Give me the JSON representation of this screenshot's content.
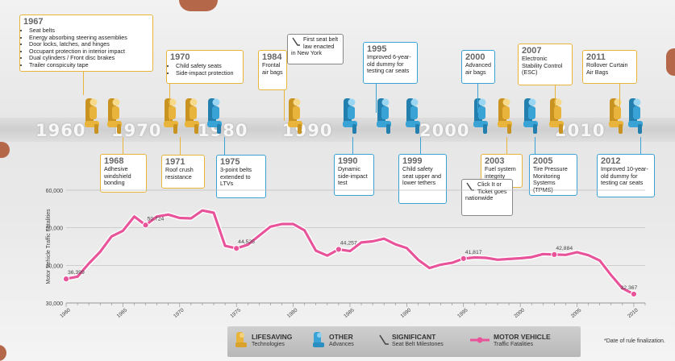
{
  "timeline": {
    "decades": [
      "1960",
      "1970",
      "1980",
      "1990",
      "2000",
      "2010"
    ],
    "cards": [
      {
        "id": "1967",
        "year": "1967",
        "type": "gold",
        "items": [
          "Seat belts",
          "Energy absorbing steering assemblies",
          "Door locks, latches, and hinges",
          "Occupant protection in interior impact",
          "Dual cylinders / Front disc brakes",
          "Trailer conspicuity tape"
        ]
      },
      {
        "id": "1968",
        "year": "1968",
        "type": "gold",
        "text": "Adhesive windshield bonding"
      },
      {
        "id": "1970",
        "year": "1970",
        "type": "gold",
        "items": [
          "Child safety seats",
          "Side-impact protection"
        ]
      },
      {
        "id": "1971",
        "year": "1971",
        "type": "gold",
        "text": "Roof crush resistance"
      },
      {
        "id": "1975",
        "year": "1975",
        "type": "blue",
        "text": "3-point belts extended to LTVs"
      },
      {
        "id": "1984",
        "year": "1984",
        "type": "gold",
        "text": "Frontal air bags"
      },
      {
        "id": "1984m",
        "year": "",
        "type": "grey",
        "text": "First seat belt law enacted in New York"
      },
      {
        "id": "1990",
        "year": "1990",
        "type": "blue",
        "text": "Dynamic side-impact test"
      },
      {
        "id": "1995",
        "year": "1995",
        "type": "blue",
        "text": "Improved 6-year-old dummy for testing car seats"
      },
      {
        "id": "1999",
        "year": "1999",
        "type": "blue",
        "text": "Child safety seat upper and lower tethers"
      },
      {
        "id": "2000",
        "year": "2000",
        "type": "blue",
        "text": "Advanced air bags"
      },
      {
        "id": "2003",
        "year": "2003",
        "type": "gold",
        "text": "Fuel system integrity"
      },
      {
        "id": "2003m",
        "year": "",
        "type": "grey",
        "text": "Click It or Ticket goes nationwide"
      },
      {
        "id": "2005",
        "year": "2005",
        "type": "blue",
        "text": "Tire Pressure Monitoring Systems (TPMS)"
      },
      {
        "id": "2007",
        "year": "2007",
        "type": "gold",
        "text": "Electronic Stability Control (ESC)"
      },
      {
        "id": "2011",
        "year": "2011",
        "type": "gold",
        "text": "Rollover Curtain Air Bags"
      },
      {
        "id": "2012",
        "year": "2012",
        "type": "blue",
        "text": "Improved 10-year-old dummy for testing car seats"
      }
    ]
  },
  "legend": {
    "lifesaving": {
      "title": "LIFESAVING",
      "sub": "Technologies",
      "color": "#e8b43c"
    },
    "other": {
      "title": "OTHER",
      "sub": "Advances",
      "color": "#3aa3d6"
    },
    "significant": {
      "title": "SIGNIFICANT",
      "sub": "Seat Belt Milestones"
    },
    "motor": {
      "title": "MOTOR VEHICLE",
      "sub": "Traffic Fatalities",
      "color": "#e8549a"
    }
  },
  "footnote": "*Date of rule finalization.",
  "chart_data": {
    "type": "line",
    "ylabel": "Motor Vehicle Traffic Fatalities",
    "xlabel": "",
    "ylim": [
      30000,
      60000
    ],
    "xlim": [
      1960,
      2011
    ],
    "xticks": [
      1960,
      1965,
      1970,
      1975,
      1980,
      1985,
      1990,
      1995,
      2000,
      2005,
      2010
    ],
    "yticks": [
      30000,
      40000,
      50000,
      60000
    ],
    "ytick_labels": [
      "30,000",
      "40,000",
      "50,000",
      "60,000"
    ],
    "series": [
      {
        "name": "MOTOR VEHICLE Traffic Fatalities",
        "color": "#e8549a",
        "x": [
          1960,
          1961,
          1962,
          1963,
          1964,
          1965,
          1966,
          1967,
          1968,
          1969,
          1970,
          1971,
          1972,
          1973,
          1974,
          1975,
          1976,
          1977,
          1978,
          1979,
          1980,
          1981,
          1982,
          1983,
          1984,
          1985,
          1986,
          1987,
          1988,
          1989,
          1990,
          1991,
          1992,
          1993,
          1994,
          1995,
          1996,
          1997,
          1998,
          1999,
          2000,
          2001,
          2002,
          2003,
          2004,
          2005,
          2006,
          2007,
          2008,
          2009,
          2010
        ],
        "y": [
          36399,
          37000,
          40500,
          43600,
          47700,
          49200,
          53000,
          50724,
          53000,
          53500,
          52600,
          52500,
          54600,
          54000,
          45200,
          44525,
          45500,
          47900,
          50300,
          51000,
          51000,
          49300,
          43900,
          42600,
          44257,
          43800,
          46100,
          46400,
          47100,
          45600,
          44600,
          41500,
          39300,
          40200,
          40700,
          41817,
          42100,
          42000,
          41500,
          41700,
          41900,
          42200,
          43000,
          42884,
          42800,
          43500,
          42700,
          41300,
          37400,
          33900,
          32367
        ]
      }
    ],
    "annotations": [
      {
        "x": 1960,
        "y": 36399,
        "label": "36,399"
      },
      {
        "x": 1967,
        "y": 50724,
        "label": "50,724"
      },
      {
        "x": 1975,
        "y": 44525,
        "label": "44,525"
      },
      {
        "x": 1984,
        "y": 44257,
        "label": "44,257"
      },
      {
        "x": 1995,
        "y": 41817,
        "label": "41,817"
      },
      {
        "x": 2003,
        "y": 42884,
        "label": "42,884"
      },
      {
        "x": 2010,
        "y": 32367,
        "label": "32,367"
      }
    ]
  }
}
